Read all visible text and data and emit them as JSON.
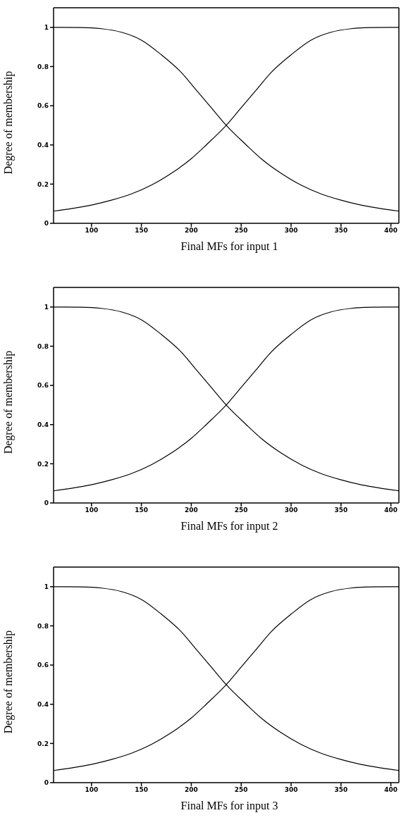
{
  "chart_data": [
    {
      "type": "line",
      "xlabel": "Final MFs for input 1",
      "ylabel": "Degree of membership",
      "xlim": [
        62,
        408
      ],
      "xticks": [
        100,
        150,
        200,
        250,
        300,
        350,
        400
      ],
      "ylim": [
        0,
        1.1
      ],
      "yticks": [
        0,
        0.2,
        0.4,
        0.6,
        0.8,
        1
      ],
      "grid": false,
      "marker": "none",
      "line_style": "solid",
      "series": [
        {
          "color": "#000000",
          "x": [
            62,
            90,
            110,
            130,
            150,
            170,
            190,
            205,
            220,
            235,
            255,
            270,
            290,
            310,
            330,
            350,
            370,
            390,
            408
          ],
          "values": [
            1.0,
            0.999,
            0.993,
            0.975,
            0.935,
            0.86,
            0.77,
            0.68,
            0.59,
            0.5,
            0.4,
            0.33,
            0.255,
            0.195,
            0.15,
            0.118,
            0.093,
            0.075,
            0.062
          ]
        },
        {
          "color": "#000000",
          "x": [
            62,
            80,
            100,
            120,
            140,
            160,
            180,
            200,
            215,
            235,
            250,
            265,
            280,
            300,
            320,
            340,
            360,
            380,
            408
          ],
          "values": [
            0.062,
            0.075,
            0.093,
            0.118,
            0.15,
            0.195,
            0.255,
            0.33,
            0.4,
            0.5,
            0.59,
            0.68,
            0.77,
            0.86,
            0.935,
            0.975,
            0.993,
            0.999,
            1.0
          ]
        }
      ]
    },
    {
      "type": "line",
      "xlabel": "Final MFs for input 2",
      "ylabel": "Degree of membership",
      "xlim": [
        62,
        408
      ],
      "xticks": [
        100,
        150,
        200,
        250,
        300,
        350,
        400
      ],
      "ylim": [
        0,
        1.1
      ],
      "yticks": [
        0,
        0.2,
        0.4,
        0.6,
        0.8,
        1
      ],
      "grid": false,
      "marker": "none",
      "line_style": "solid",
      "series": [
        {
          "color": "#000000",
          "x": [
            62,
            90,
            110,
            130,
            150,
            170,
            190,
            205,
            220,
            235,
            255,
            270,
            290,
            310,
            330,
            350,
            370,
            390,
            408
          ],
          "values": [
            1.0,
            0.999,
            0.993,
            0.975,
            0.935,
            0.86,
            0.77,
            0.68,
            0.59,
            0.5,
            0.4,
            0.33,
            0.255,
            0.195,
            0.15,
            0.118,
            0.093,
            0.075,
            0.062
          ]
        },
        {
          "color": "#000000",
          "x": [
            62,
            80,
            100,
            120,
            140,
            160,
            180,
            200,
            215,
            235,
            250,
            265,
            280,
            300,
            320,
            340,
            360,
            380,
            408
          ],
          "values": [
            0.062,
            0.075,
            0.093,
            0.118,
            0.15,
            0.195,
            0.255,
            0.33,
            0.4,
            0.5,
            0.59,
            0.68,
            0.77,
            0.86,
            0.935,
            0.975,
            0.993,
            0.999,
            1.0
          ]
        }
      ]
    },
    {
      "type": "line",
      "xlabel": "Final MFs for input 3",
      "ylabel": "Degree of membership",
      "xlim": [
        62,
        408
      ],
      "xticks": [
        100,
        150,
        200,
        250,
        300,
        350,
        400
      ],
      "ylim": [
        0,
        1.1
      ],
      "yticks": [
        0,
        0.2,
        0.4,
        0.6,
        0.8,
        1
      ],
      "grid": false,
      "marker": "none",
      "line_style": "solid",
      "series": [
        {
          "color": "#000000",
          "x": [
            62,
            90,
            110,
            130,
            150,
            170,
            190,
            205,
            220,
            235,
            255,
            270,
            290,
            310,
            330,
            350,
            370,
            390,
            408
          ],
          "values": [
            1.0,
            0.999,
            0.993,
            0.975,
            0.935,
            0.86,
            0.77,
            0.68,
            0.59,
            0.5,
            0.4,
            0.33,
            0.255,
            0.195,
            0.15,
            0.118,
            0.093,
            0.075,
            0.062
          ]
        },
        {
          "color": "#000000",
          "x": [
            62,
            80,
            100,
            120,
            140,
            160,
            180,
            200,
            215,
            235,
            250,
            265,
            280,
            300,
            320,
            340,
            360,
            380,
            408
          ],
          "values": [
            0.062,
            0.075,
            0.093,
            0.118,
            0.15,
            0.195,
            0.255,
            0.33,
            0.4,
            0.5,
            0.59,
            0.68,
            0.77,
            0.86,
            0.935,
            0.975,
            0.993,
            0.999,
            1.0
          ]
        }
      ]
    }
  ]
}
